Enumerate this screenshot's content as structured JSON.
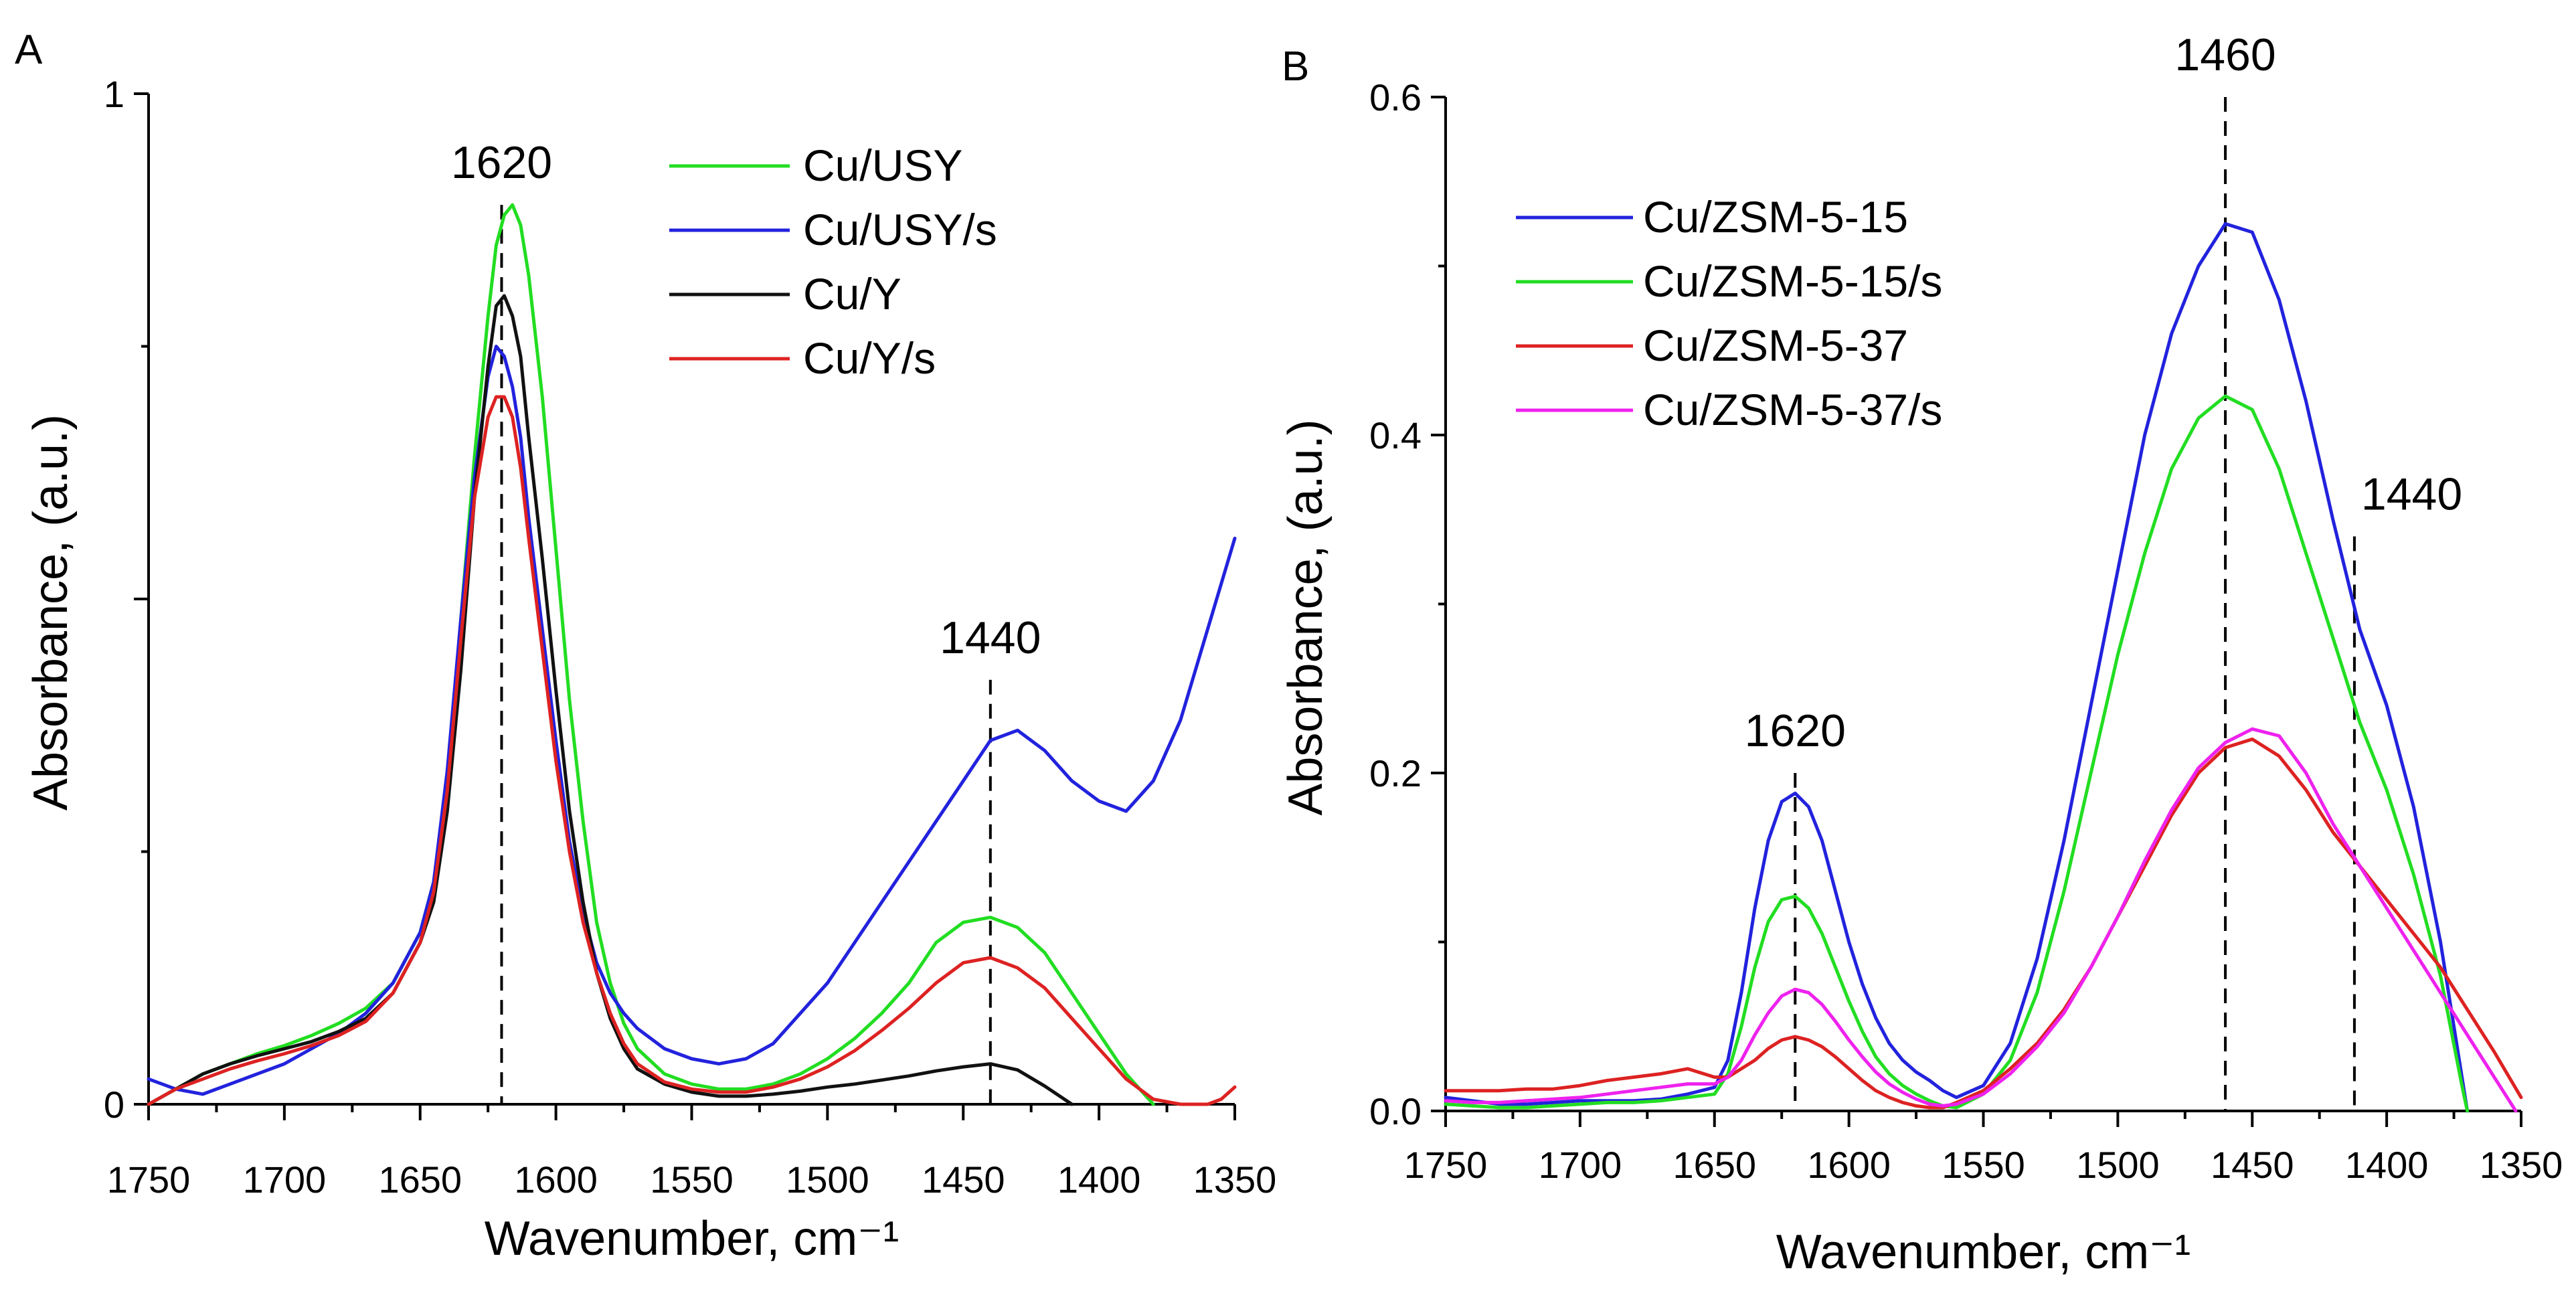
{
  "chart_data": [
    {
      "type": "line",
      "panel": "A",
      "xlabel": "Wavenumber, cm⁻¹",
      "ylabel": "Absorbance, (a.u.)",
      "xlim": [
        1750,
        1350
      ],
      "ylim": [
        0,
        1
      ],
      "xticks": [
        1750,
        1700,
        1650,
        1600,
        1550,
        1500,
        1450,
        1400,
        1350
      ],
      "yticks": [
        0,
        0.5,
        1
      ],
      "ytick_labels": [
        "0",
        "",
        "1"
      ],
      "legend_position": "top-right",
      "annotations": [
        {
          "label": "1620",
          "x": 1620,
          "y_top": 0.89
        },
        {
          "label": "1440",
          "x": 1440,
          "y_top": 0.42
        }
      ],
      "series": [
        {
          "name": "Cu/USY",
          "color": "#22dd22",
          "x": [
            1750,
            1740,
            1730,
            1720,
            1710,
            1700,
            1690,
            1680,
            1670,
            1660,
            1650,
            1645,
            1640,
            1635,
            1630,
            1625,
            1622,
            1619,
            1616,
            1613,
            1610,
            1605,
            1600,
            1595,
            1590,
            1585,
            1580,
            1575,
            1570,
            1560,
            1550,
            1540,
            1530,
            1520,
            1510,
            1500,
            1490,
            1480,
            1470,
            1460,
            1450,
            1440,
            1430,
            1420,
            1410,
            1400,
            1390,
            1380
          ],
          "y": [
            0.0,
            0.015,
            0.03,
            0.04,
            0.05,
            0.058,
            0.068,
            0.08,
            0.095,
            0.12,
            0.17,
            0.22,
            0.32,
            0.48,
            0.64,
            0.78,
            0.85,
            0.88,
            0.89,
            0.87,
            0.82,
            0.7,
            0.55,
            0.4,
            0.28,
            0.18,
            0.12,
            0.08,
            0.055,
            0.03,
            0.02,
            0.015,
            0.015,
            0.02,
            0.03,
            0.045,
            0.065,
            0.09,
            0.12,
            0.16,
            0.18,
            0.185,
            0.175,
            0.15,
            0.11,
            0.07,
            0.03,
            0.0
          ]
        },
        {
          "name": "Cu/USY/s",
          "color": "#2222dd",
          "x": [
            1750,
            1740,
            1730,
            1720,
            1710,
            1700,
            1690,
            1680,
            1670,
            1660,
            1650,
            1645,
            1640,
            1635,
            1630,
            1625,
            1622,
            1619,
            1616,
            1613,
            1610,
            1605,
            1600,
            1595,
            1590,
            1585,
            1580,
            1575,
            1570,
            1560,
            1550,
            1540,
            1530,
            1520,
            1510,
            1500,
            1490,
            1480,
            1470,
            1460,
            1450,
            1440,
            1430,
            1420,
            1410,
            1400,
            1390,
            1380,
            1370,
            1360,
            1350
          ],
          "y": [
            0.025,
            0.015,
            0.01,
            0.02,
            0.03,
            0.04,
            0.055,
            0.07,
            0.09,
            0.12,
            0.17,
            0.22,
            0.33,
            0.48,
            0.62,
            0.72,
            0.75,
            0.74,
            0.71,
            0.66,
            0.58,
            0.47,
            0.36,
            0.26,
            0.19,
            0.14,
            0.11,
            0.09,
            0.075,
            0.055,
            0.045,
            0.04,
            0.045,
            0.06,
            0.09,
            0.12,
            0.16,
            0.2,
            0.24,
            0.28,
            0.32,
            0.36,
            0.37,
            0.35,
            0.32,
            0.3,
            0.29,
            0.32,
            0.38,
            0.47,
            0.56
          ]
        },
        {
          "name": "Cu/Y",
          "color": "#111111",
          "x": [
            1750,
            1740,
            1730,
            1720,
            1710,
            1700,
            1690,
            1680,
            1670,
            1660,
            1650,
            1645,
            1640,
            1635,
            1630,
            1625,
            1622,
            1619,
            1616,
            1613,
            1610,
            1605,
            1600,
            1595,
            1590,
            1585,
            1580,
            1575,
            1570,
            1560,
            1550,
            1540,
            1530,
            1520,
            1510,
            1500,
            1490,
            1480,
            1470,
            1460,
            1450,
            1440,
            1430,
            1420,
            1410
          ],
          "y": [
            0.0,
            0.015,
            0.03,
            0.04,
            0.048,
            0.055,
            0.062,
            0.072,
            0.085,
            0.11,
            0.16,
            0.2,
            0.29,
            0.43,
            0.6,
            0.73,
            0.79,
            0.8,
            0.78,
            0.74,
            0.66,
            0.54,
            0.41,
            0.29,
            0.2,
            0.13,
            0.085,
            0.055,
            0.035,
            0.02,
            0.012,
            0.008,
            0.008,
            0.01,
            0.013,
            0.017,
            0.02,
            0.024,
            0.028,
            0.033,
            0.037,
            0.04,
            0.034,
            0.018,
            0.0
          ]
        },
        {
          "name": "Cu/Y/s",
          "color": "#dd2222",
          "x": [
            1750,
            1740,
            1730,
            1720,
            1710,
            1700,
            1690,
            1680,
            1670,
            1660,
            1650,
            1645,
            1640,
            1635,
            1630,
            1625,
            1622,
            1619,
            1616,
            1613,
            1610,
            1605,
            1600,
            1595,
            1590,
            1585,
            1580,
            1575,
            1570,
            1560,
            1550,
            1540,
            1530,
            1520,
            1510,
            1500,
            1490,
            1480,
            1470,
            1460,
            1450,
            1440,
            1430,
            1420,
            1410,
            1400,
            1390,
            1380,
            1370,
            1360,
            1355,
            1350
          ],
          "y": [
            0.0,
            0.015,
            0.025,
            0.035,
            0.043,
            0.05,
            0.058,
            0.068,
            0.082,
            0.11,
            0.16,
            0.21,
            0.31,
            0.46,
            0.6,
            0.68,
            0.7,
            0.7,
            0.68,
            0.63,
            0.56,
            0.45,
            0.34,
            0.25,
            0.18,
            0.13,
            0.09,
            0.06,
            0.04,
            0.022,
            0.015,
            0.012,
            0.012,
            0.017,
            0.025,
            0.037,
            0.053,
            0.073,
            0.095,
            0.12,
            0.14,
            0.145,
            0.135,
            0.115,
            0.085,
            0.055,
            0.025,
            0.005,
            0.0,
            0.0,
            0.005,
            0.017
          ]
        }
      ]
    },
    {
      "type": "line",
      "panel": "B",
      "xlabel": "Wavenumber, cm⁻¹",
      "ylabel": "Absorbance, (a.u.)",
      "xlim": [
        1750,
        1350
      ],
      "ylim": [
        0,
        0.6
      ],
      "xticks": [
        1750,
        1700,
        1650,
        1600,
        1550,
        1500,
        1450,
        1400,
        1350
      ],
      "yticks": [
        0,
        0.2,
        0.4,
        0.6
      ],
      "ytick_labels": [
        "0.0",
        "0.2",
        "0.4",
        "0.6"
      ],
      "legend_position": "top-left",
      "annotations": [
        {
          "label": "1620",
          "x": 1620,
          "y_top": 0.2
        },
        {
          "label": "1460",
          "x": 1460,
          "y_top": 0.6
        },
        {
          "label": "1440",
          "x": 1412,
          "y_top": 0.34
        }
      ],
      "series": [
        {
          "name": "Cu/ZSM-5-15",
          "color": "#2222dd",
          "x": [
            1750,
            1740,
            1730,
            1720,
            1710,
            1700,
            1690,
            1680,
            1670,
            1660,
            1650,
            1645,
            1640,
            1635,
            1630,
            1625,
            1620,
            1615,
            1610,
            1605,
            1600,
            1595,
            1590,
            1585,
            1580,
            1575,
            1570,
            1565,
            1560,
            1550,
            1540,
            1530,
            1520,
            1510,
            1500,
            1490,
            1480,
            1470,
            1460,
            1450,
            1440,
            1430,
            1420,
            1410,
            1400,
            1390,
            1380,
            1372,
            1370
          ],
          "y": [
            0.008,
            0.006,
            0.004,
            0.004,
            0.005,
            0.006,
            0.006,
            0.006,
            0.007,
            0.01,
            0.014,
            0.03,
            0.07,
            0.12,
            0.16,
            0.183,
            0.188,
            0.18,
            0.16,
            0.13,
            0.1,
            0.075,
            0.055,
            0.04,
            0.03,
            0.023,
            0.018,
            0.012,
            0.008,
            0.015,
            0.04,
            0.09,
            0.16,
            0.24,
            0.32,
            0.4,
            0.46,
            0.5,
            0.525,
            0.52,
            0.48,
            0.42,
            0.35,
            0.285,
            0.24,
            0.18,
            0.1,
            0.02,
            0.0
          ]
        },
        {
          "name": "Cu/ZSM-5-15/s",
          "color": "#22dd22",
          "x": [
            1750,
            1740,
            1730,
            1720,
            1710,
            1700,
            1690,
            1680,
            1670,
            1660,
            1650,
            1645,
            1640,
            1635,
            1630,
            1625,
            1620,
            1615,
            1610,
            1605,
            1600,
            1595,
            1590,
            1585,
            1580,
            1575,
            1570,
            1565,
            1560,
            1550,
            1540,
            1530,
            1520,
            1510,
            1500,
            1490,
            1480,
            1470,
            1460,
            1450,
            1440,
            1430,
            1420,
            1410,
            1400,
            1390,
            1380,
            1372,
            1370
          ],
          "y": [
            0.004,
            0.003,
            0.002,
            0.002,
            0.003,
            0.004,
            0.005,
            0.005,
            0.006,
            0.008,
            0.01,
            0.022,
            0.05,
            0.085,
            0.112,
            0.125,
            0.127,
            0.12,
            0.105,
            0.085,
            0.065,
            0.047,
            0.032,
            0.022,
            0.015,
            0.01,
            0.006,
            0.003,
            0.002,
            0.01,
            0.03,
            0.07,
            0.13,
            0.2,
            0.27,
            0.33,
            0.38,
            0.41,
            0.423,
            0.415,
            0.38,
            0.33,
            0.28,
            0.23,
            0.19,
            0.14,
            0.08,
            0.015,
            0.0
          ]
        },
        {
          "name": "Cu/ZSM-5-37",
          "color": "#dd2222",
          "x": [
            1750,
            1740,
            1730,
            1720,
            1710,
            1700,
            1690,
            1680,
            1670,
            1660,
            1650,
            1645,
            1640,
            1635,
            1630,
            1625,
            1620,
            1615,
            1610,
            1605,
            1600,
            1595,
            1590,
            1585,
            1580,
            1575,
            1570,
            1565,
            1560,
            1550,
            1540,
            1530,
            1520,
            1510,
            1500,
            1490,
            1480,
            1470,
            1460,
            1450,
            1440,
            1430,
            1420,
            1410,
            1400,
            1390,
            1380,
            1370,
            1360,
            1350
          ],
          "y": [
            0.012,
            0.012,
            0.012,
            0.013,
            0.013,
            0.015,
            0.018,
            0.02,
            0.022,
            0.025,
            0.02,
            0.02,
            0.025,
            0.03,
            0.037,
            0.042,
            0.044,
            0.042,
            0.038,
            0.032,
            0.025,
            0.018,
            0.012,
            0.008,
            0.005,
            0.003,
            0.002,
            0.002,
            0.005,
            0.012,
            0.025,
            0.04,
            0.06,
            0.085,
            0.115,
            0.145,
            0.175,
            0.2,
            0.215,
            0.22,
            0.21,
            0.19,
            0.165,
            0.145,
            0.125,
            0.105,
            0.085,
            0.06,
            0.035,
            0.008
          ]
        },
        {
          "name": "Cu/ZSM-5-37/s",
          "color": "#ee22ee",
          "x": [
            1750,
            1740,
            1730,
            1720,
            1710,
            1700,
            1690,
            1680,
            1670,
            1660,
            1650,
            1645,
            1640,
            1635,
            1630,
            1625,
            1620,
            1615,
            1610,
            1605,
            1600,
            1595,
            1590,
            1585,
            1580,
            1575,
            1570,
            1565,
            1560,
            1550,
            1540,
            1530,
            1520,
            1510,
            1500,
            1490,
            1480,
            1470,
            1460,
            1450,
            1440,
            1430,
            1420,
            1410,
            1400,
            1390,
            1380,
            1370,
            1360,
            1352
          ],
          "y": [
            0.006,
            0.005,
            0.005,
            0.006,
            0.007,
            0.008,
            0.01,
            0.012,
            0.014,
            0.016,
            0.016,
            0.02,
            0.03,
            0.045,
            0.058,
            0.068,
            0.072,
            0.07,
            0.063,
            0.053,
            0.042,
            0.032,
            0.023,
            0.016,
            0.011,
            0.007,
            0.004,
            0.003,
            0.004,
            0.01,
            0.022,
            0.038,
            0.058,
            0.085,
            0.115,
            0.148,
            0.178,
            0.203,
            0.218,
            0.226,
            0.222,
            0.2,
            0.17,
            0.145,
            0.12,
            0.095,
            0.07,
            0.045,
            0.02,
            0.0
          ]
        }
      ]
    }
  ]
}
